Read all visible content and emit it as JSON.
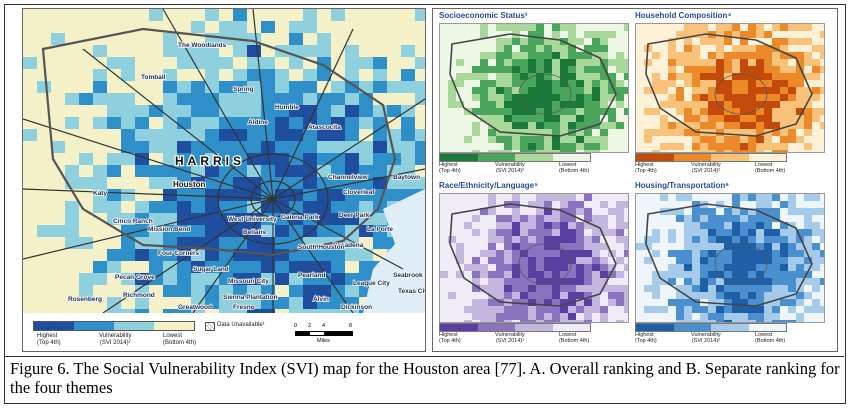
{
  "panel_a": {
    "harris_label": "HARRIS",
    "houston_label": "Houston",
    "places": [
      {
        "name": "The Woodlands"
      },
      {
        "name": "Tomball"
      },
      {
        "name": "Spring"
      },
      {
        "name": "Humble"
      },
      {
        "name": "Aldine"
      },
      {
        "name": "Atascocita"
      },
      {
        "name": "Katy"
      },
      {
        "name": "Cinco Ranch"
      },
      {
        "name": "Mission Bend"
      },
      {
        "name": "Four Corners"
      },
      {
        "name": "Pecan Grove"
      },
      {
        "name": "Richmond"
      },
      {
        "name": "Rosenberg"
      },
      {
        "name": "Sugar Land"
      },
      {
        "name": "Missouri City"
      },
      {
        "name": "Greatwood"
      },
      {
        "name": "Fresno"
      },
      {
        "name": "Sienna Plantation"
      },
      {
        "name": "Pearland"
      },
      {
        "name": "Alvin"
      },
      {
        "name": "Pasadena"
      },
      {
        "name": "Channelview"
      },
      {
        "name": "Cloverleaf"
      },
      {
        "name": "Baytown"
      },
      {
        "name": "Deer Park"
      },
      {
        "name": "La Porte"
      },
      {
        "name": "League City"
      },
      {
        "name": "Seabrook"
      },
      {
        "name": "Dickinson"
      },
      {
        "name": "Texas City"
      },
      {
        "name": "Galena Park"
      },
      {
        "name": "South Houston"
      },
      {
        "name": "Bellaire"
      },
      {
        "name": "West University"
      }
    ],
    "legend": {
      "highest": "Highest",
      "highest_sub": "(Top 4th)",
      "vulnerability": "Vulnerability",
      "vulnerability_sub": "(SVI 2014)²",
      "lowest": "Lowest",
      "lowest_sub": "(Bottom 4th)",
      "unavailable": "Data Unavailable¹",
      "scale_ticks": [
        "0",
        "2",
        "4",
        "8"
      ],
      "scale_unit": "Miles",
      "colors": [
        "#1f4e9e",
        "#2f8fc8",
        "#8fd0df",
        "#f4f1c8"
      ]
    }
  },
  "panel_b": {
    "themes": [
      {
        "title": "Socioeconomic Status³",
        "colors": [
          "#1b7a3a",
          "#4aa65c",
          "#a9d99a",
          "#eef7e6"
        ]
      },
      {
        "title": "Household Composition⁴",
        "colors": [
          "#c44a0c",
          "#ec8a2a",
          "#f9c27a",
          "#fdf2d8"
        ]
      },
      {
        "title": "Race/Ethnicity/Language⁵",
        "colors": [
          "#5b3fa0",
          "#8a74c0",
          "#c3b7e0",
          "#f0ecf7"
        ]
      },
      {
        "title": "Housing/Transportation⁶",
        "colors": [
          "#1f5fa8",
          "#4a90cf",
          "#a6cbea",
          "#eef5fb"
        ]
      }
    ],
    "legend": {
      "highest": "Highest",
      "highest_sub": "(Top 4th)",
      "vulnerability": "Vulnerability",
      "vulnerability_sub": "(SVI 2014)²",
      "lowest": "Lowest",
      "lowest_sub": "(Bottom 4th)"
    }
  },
  "caption": "Figure 6.  The Social Vulnerability Index (SVI) map for the Houston area [77].   A. Overall ranking and B.  Separate ranking for the four themes"
}
